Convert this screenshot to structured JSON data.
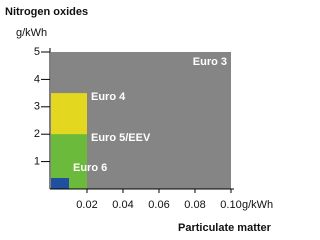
{
  "chart_data": {
    "type": "nested-rect",
    "y_title": "Nitrogen oxides",
    "y_unit": "g/kWh",
    "x_title": "Particulate matter",
    "x_unit": "g/kWh",
    "xlim": [
      0,
      0.1
    ],
    "xticks": [
      0.02,
      0.04,
      0.06,
      0.08,
      {
        "value": 0.1,
        "label": "0.10"
      }
    ],
    "ylim": [
      0,
      5
    ],
    "yticks": [
      1,
      2,
      3,
      4,
      5
    ],
    "series": [
      {
        "name": "Euro 3",
        "color": "#858585",
        "x": 0.1,
        "y": 5
      },
      {
        "name": "Euro 4",
        "color": "#e3d81f",
        "x": 0.02,
        "y": 3.5
      },
      {
        "name": "Euro 5/EEV",
        "color": "#6cba3c",
        "x": 0.02,
        "y": 2
      },
      {
        "name": "Euro 6",
        "color": "#1f4f9e",
        "x": 0.01,
        "y": 0.4
      }
    ]
  }
}
